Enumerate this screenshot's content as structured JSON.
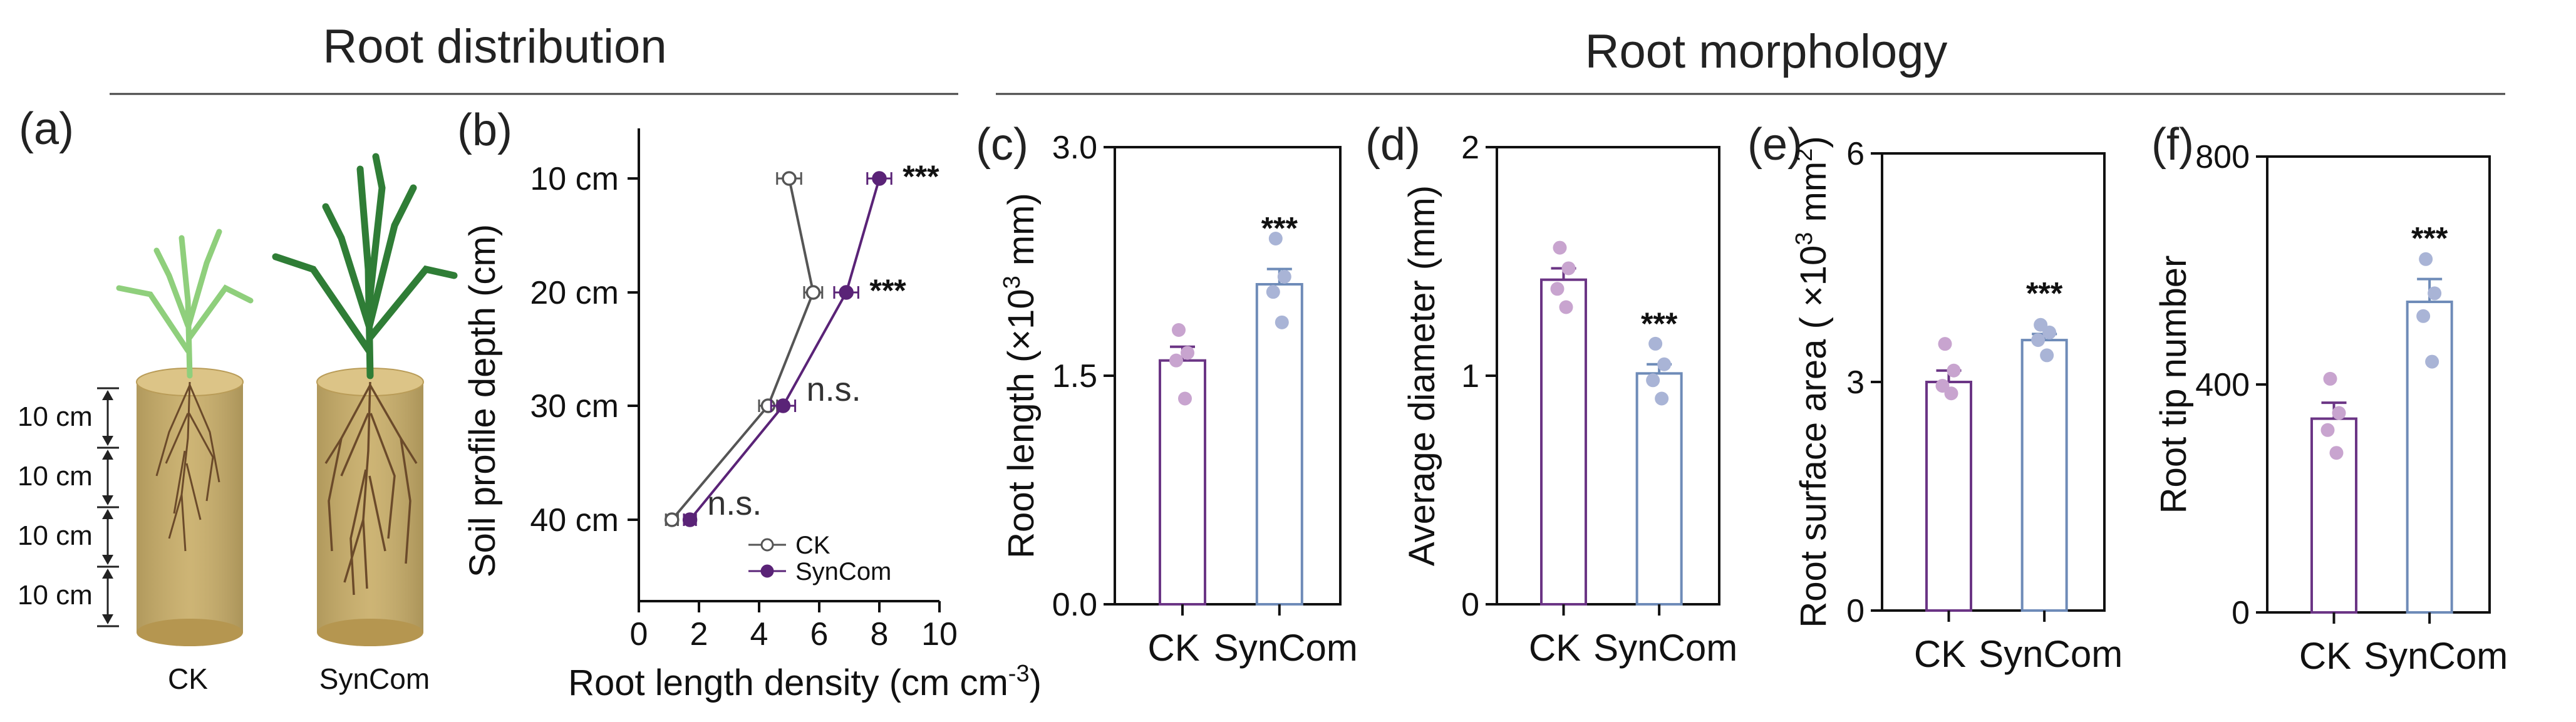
{
  "headers": {
    "left": "Root distribution",
    "right": "Root morphology"
  },
  "colors": {
    "ck": "#6b3585",
    "syncom": "#6e8bb8",
    "ck_dot": "#c8a4cf",
    "syncom_dot": "#a9b4d6",
    "gray": "#555555",
    "purple": "#5a2377",
    "soil": "#c8ad68",
    "soil_dark": "#a68b46",
    "leaf": "#3a8d3f"
  },
  "panel_a": {
    "label": "(a)",
    "treatments": [
      "CK",
      "SynCom"
    ],
    "depth_labels": [
      "10 cm",
      "10 cm",
      "10 cm",
      "10 cm"
    ]
  },
  "panel_b": {
    "label": "(b)",
    "ylabel": "Soil profile depth (cm)",
    "xlabel": "Root length density (cm cm",
    "xlabel_sup": "-3",
    "xlabel_end": ")"
  },
  "chart_data": [
    {
      "panel": "b",
      "type": "line",
      "orientation": "horizontal-profile",
      "title": "",
      "xlabel": "Root length density (cm cm-3)",
      "ylabel": "Soil profile depth (cm)",
      "xlim": [
        0,
        10
      ],
      "xticks": [
        "0",
        "2",
        "4",
        "6",
        "8",
        "10"
      ],
      "categories": [
        "10 cm",
        "20 cm",
        "30 cm",
        "40 cm"
      ],
      "series": [
        {
          "name": "CK",
          "values": [
            5.0,
            5.8,
            4.3,
            1.1
          ],
          "errors": [
            0.4,
            0.3,
            0.3,
            0.2
          ]
        },
        {
          "name": "SynCom",
          "values": [
            8.0,
            6.9,
            4.8,
            1.7
          ],
          "errors": [
            0.4,
            0.4,
            0.4,
            0.2
          ]
        }
      ],
      "annotations": [
        "***",
        "***",
        "n.s.",
        "n.s."
      ],
      "legend": "bottom-right"
    },
    {
      "panel": "c",
      "label": "(c)",
      "type": "bar",
      "ylabel": "Root length (×10",
      "ylabel_sup": "3",
      "ylabel_end": " mm)",
      "categories": [
        "CK",
        "SynCom"
      ],
      "values": [
        1.6,
        2.1
      ],
      "errors": [
        0.09,
        0.1
      ],
      "points": [
        [
          1.8,
          1.65,
          1.6,
          1.35
        ],
        [
          2.4,
          2.15,
          2.05,
          1.85
        ]
      ],
      "ylim": [
        0,
        3
      ],
      "yticks": [
        "0.0",
        "1.5",
        "3.0"
      ],
      "tick_values": [
        0,
        1.5,
        3.0
      ],
      "significance": "***"
    },
    {
      "panel": "d",
      "label": "(d)",
      "type": "bar",
      "ylabel": "Average diameter (mm)",
      "ylabel_sup": "",
      "ylabel_end": "",
      "categories": [
        "CK",
        "SynCom"
      ],
      "values": [
        1.42,
        1.01
      ],
      "errors": [
        0.05,
        0.04
      ],
      "points": [
        [
          1.56,
          1.47,
          1.38,
          1.3
        ],
        [
          1.14,
          1.05,
          0.98,
          0.9
        ]
      ],
      "ylim": [
        0,
        2
      ],
      "yticks": [
        "0",
        "1",
        "2"
      ],
      "tick_values": [
        0,
        1,
        2
      ],
      "significance": "***"
    },
    {
      "panel": "e",
      "label": "(e)",
      "type": "bar",
      "ylabel": "Root surface area ( ×10",
      "ylabel_sup": "3",
      "ylabel_end": " mm",
      "ylabel_sup2": "2",
      "ylabel_end2": ")",
      "categories": [
        "CK",
        "SynCom"
      ],
      "values": [
        3.0,
        3.55
      ],
      "errors": [
        0.15,
        0.08
      ],
      "points": [
        [
          3.5,
          3.15,
          2.95,
          2.85
        ],
        [
          3.75,
          3.65,
          3.55,
          3.35
        ]
      ],
      "ylim": [
        0,
        6
      ],
      "yticks": [
        "0",
        "3",
        "6"
      ],
      "tick_values": [
        0,
        3,
        6
      ],
      "significance": "***"
    },
    {
      "panel": "f",
      "label": "(f)",
      "type": "bar",
      "ylabel": "Root tip number",
      "ylabel_sup": "",
      "ylabel_end": "",
      "categories": [
        "CK",
        "SynCom"
      ],
      "values": [
        340,
        545
      ],
      "errors": [
        28,
        40
      ],
      "points": [
        [
          410,
          350,
          320,
          280
        ],
        [
          620,
          560,
          520,
          440
        ]
      ],
      "ylim": [
        0,
        800
      ],
      "yticks": [
        "0",
        "400",
        "800"
      ],
      "tick_values": [
        0,
        400,
        800
      ],
      "significance": "***"
    }
  ]
}
